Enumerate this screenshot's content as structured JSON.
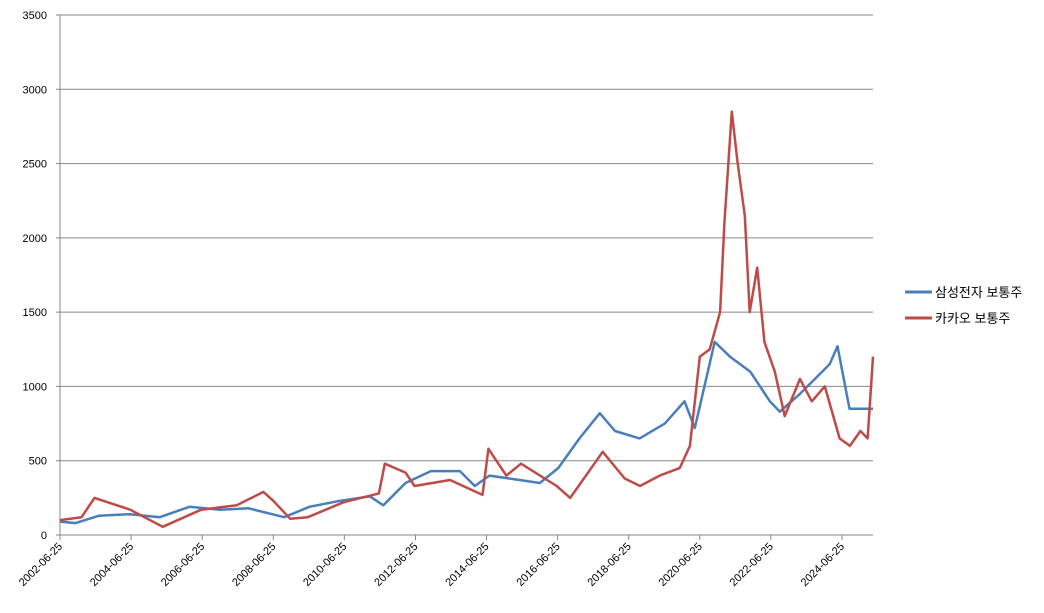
{
  "chart_data": {
    "type": "line",
    "ylim": [
      0,
      3500
    ],
    "yticks": [
      0,
      500,
      1000,
      1500,
      2000,
      2500,
      3000,
      3500
    ],
    "grid": true,
    "xlim": [
      "2002-06-25",
      "2025-05-10"
    ],
    "xticks": [
      "2002-06-25",
      "2004-06-25",
      "2006-06-25",
      "2008-06-25",
      "2010-06-25",
      "2012-06-25",
      "2014-06-25",
      "2016-06-25",
      "2018-06-25",
      "2020-06-25",
      "2022-06-25",
      "2024-06-25"
    ],
    "legend": "right",
    "series": [
      {
        "name": "삼성전자 보통주",
        "color": "#4a7ebb",
        "x": [
          "2002-06-25",
          "2002-12-01",
          "2003-08-01",
          "2004-06-15",
          "2005-04-15",
          "2006-02-15",
          "2006-12-25",
          "2007-10-15",
          "2008-10-15",
          "2009-07-01",
          "2010-05-10",
          "2011-03-15",
          "2011-08-01",
          "2012-03-15",
          "2012-12-01",
          "2013-09-25",
          "2014-02-25",
          "2014-07-25",
          "2015-02-15",
          "2015-12-25",
          "2016-07-01",
          "2017-02-05",
          "2017-09-01",
          "2018-02-05",
          "2018-10-15",
          "2019-07-01",
          "2020-01-20",
          "2020-05-05",
          "2020-11-25",
          "2021-05-01",
          "2021-11-25",
          "2022-06-15",
          "2022-09-25",
          "2023-04-20",
          "2023-09-20",
          "2024-02-20",
          "2024-05-10",
          "2024-09-10",
          "2025-02-15",
          "2025-05-10"
        ],
        "values": [
          90,
          80,
          130,
          140,
          120,
          190,
          170,
          180,
          120,
          190,
          230,
          260,
          200,
          350,
          430,
          430,
          330,
          400,
          380,
          350,
          450,
          650,
          820,
          700,
          650,
          750,
          900,
          720,
          1300,
          1200,
          1100,
          900,
          830,
          950,
          1050,
          1150,
          1270,
          850,
          850,
          850
        ]
      },
      {
        "name": "카카오 보통주",
        "color": "#be4b48",
        "x": [
          "2002-06-25",
          "2003-02-01",
          "2003-06-15",
          "2004-06-15",
          "2005-05-15",
          "2006-06-15",
          "2007-06-15",
          "2008-03-15",
          "2008-06-25",
          "2008-12-15",
          "2009-06-15",
          "2010-06-15",
          "2011-06-15",
          "2011-08-15",
          "2012-03-15",
          "2012-06-15",
          "2013-06-15",
          "2014-05-15",
          "2014-07-15",
          "2015-01-15",
          "2015-06-15",
          "2016-06-15",
          "2016-11-01",
          "2017-10-01",
          "2018-05-15",
          "2018-10-20",
          "2019-05-10",
          "2019-12-01",
          "2020-03-15",
          "2020-06-25",
          "2020-10-05",
          "2021-01-20",
          "2021-03-05",
          "2021-05-20",
          "2021-07-20",
          "2021-10-01",
          "2021-11-20",
          "2022-02-05",
          "2022-04-20",
          "2022-08-05",
          "2022-11-15",
          "2023-04-20",
          "2023-08-20",
          "2024-01-01",
          "2024-06-01",
          "2024-09-15",
          "2025-01-01",
          "2025-03-15",
          "2025-05-10"
        ],
        "values": [
          100,
          120,
          250,
          170,
          55,
          170,
          200,
          290,
          230,
          110,
          120,
          220,
          280,
          480,
          420,
          330,
          370,
          270,
          580,
          400,
          480,
          330,
          250,
          560,
          380,
          330,
          400,
          450,
          600,
          1200,
          1250,
          1500,
          2100,
          2850,
          2500,
          2150,
          1500,
          1800,
          1300,
          1100,
          800,
          1050,
          900,
          1000,
          650,
          600,
          700,
          650,
          1200
        ]
      }
    ]
  }
}
